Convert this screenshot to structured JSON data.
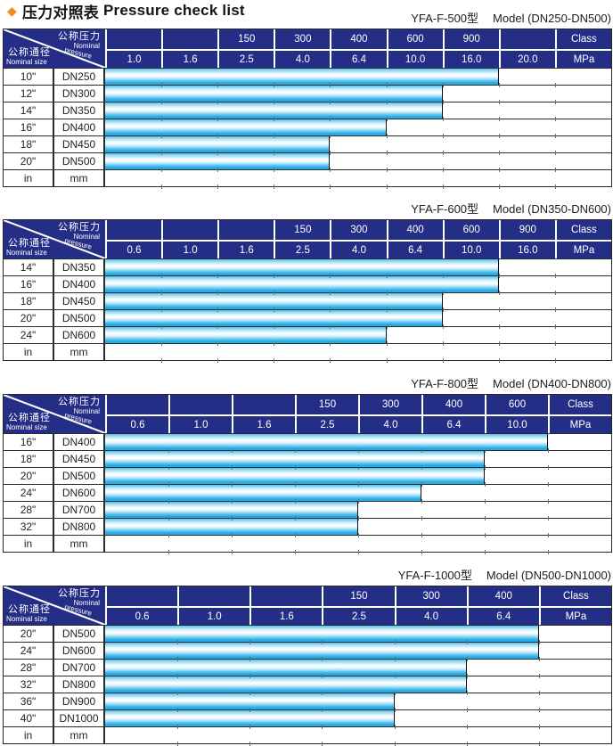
{
  "title": {
    "diamond": "◆",
    "zh": "压力对照表",
    "en": "Pressure check list"
  },
  "corner": {
    "pressure_zh": "公称压力",
    "pressure_en_1": "Nominal",
    "pressure_en_2": "pressure",
    "size_zh": "公称通径",
    "size_en": "Nominal size"
  },
  "colors": {
    "header_blue": "#252e86",
    "bar_cyan": "#29b0e6",
    "title_diamond_orange": "#ee8f1e",
    "grid_line": "#2a2a2a"
  },
  "tables": [
    {
      "model": "YFA-F-500型",
      "range": "Model (DN250-DN500)",
      "class_row": [
        "",
        "",
        "150",
        "300",
        "400",
        "600",
        "900",
        "",
        "Class"
      ],
      "mpa_row": [
        "1.0",
        "1.6",
        "2.5",
        "4.0",
        "6.4",
        "10.0",
        "16.0",
        "20.0",
        "MPa"
      ],
      "rows": [
        {
          "inch": "10\"",
          "dn": "DN250",
          "covered_columns": 7
        },
        {
          "inch": "12\"",
          "dn": "DN300",
          "covered_columns": 6
        },
        {
          "inch": "14\"",
          "dn": "DN350",
          "covered_columns": 6
        },
        {
          "inch": "16\"",
          "dn": "DN400",
          "covered_columns": 5
        },
        {
          "inch": "18\"",
          "dn": "DN450",
          "covered_columns": 4
        },
        {
          "inch": "20\"",
          "dn": "DN500",
          "covered_columns": 4
        }
      ],
      "footer": {
        "in_label": "in",
        "mm_label": "mm"
      }
    },
    {
      "model": "YFA-F-600型",
      "range": "Model (DN350-DN600)",
      "class_row": [
        "",
        "",
        "",
        "150",
        "300",
        "400",
        "600",
        "900",
        "Class"
      ],
      "mpa_row": [
        "0.6",
        "1.0",
        "1.6",
        "2.5",
        "4.0",
        "6.4",
        "10.0",
        "16.0",
        "MPa"
      ],
      "rows": [
        {
          "inch": "14\"",
          "dn": "DN350",
          "covered_columns": 7
        },
        {
          "inch": "16\"",
          "dn": "DN400",
          "covered_columns": 7
        },
        {
          "inch": "18\"",
          "dn": "DN450",
          "covered_columns": 6
        },
        {
          "inch": "20\"",
          "dn": "DN500",
          "covered_columns": 6
        },
        {
          "inch": "24\"",
          "dn": "DN600",
          "covered_columns": 5
        }
      ],
      "footer": {
        "in_label": "in",
        "mm_label": "mm"
      }
    },
    {
      "model": "YFA-F-800型",
      "range": "Model (DN400-DN800)",
      "class_row": [
        "",
        "",
        "",
        "150",
        "300",
        "400",
        "600",
        "Class"
      ],
      "mpa_row": [
        "0.6",
        "1.0",
        "1.6",
        "2.5",
        "4.0",
        "6.4",
        "10.0",
        "MPa"
      ],
      "rows": [
        {
          "inch": "16\"",
          "dn": "DN400",
          "covered_columns": 7
        },
        {
          "inch": "18\"",
          "dn": "DN450",
          "covered_columns": 6
        },
        {
          "inch": "20\"",
          "dn": "DN500",
          "covered_columns": 6
        },
        {
          "inch": "24\"",
          "dn": "DN600",
          "covered_columns": 5
        },
        {
          "inch": "28\"",
          "dn": "DN700",
          "covered_columns": 4
        },
        {
          "inch": "32\"",
          "dn": "DN800",
          "covered_columns": 4
        }
      ],
      "footer": {
        "in_label": "in",
        "mm_label": "mm"
      }
    },
    {
      "model": "YFA-F-1000型",
      "range": "Model (DN500-DN1000)",
      "class_row": [
        "",
        "",
        "",
        "150",
        "300",
        "400",
        "Class"
      ],
      "mpa_row": [
        "0.6",
        "1.0",
        "1.6",
        "2.5",
        "4.0",
        "6.4",
        "MPa"
      ],
      "rows": [
        {
          "inch": "20\"",
          "dn": "DN500",
          "covered_columns": 6
        },
        {
          "inch": "24\"",
          "dn": "DN600",
          "covered_columns": 6
        },
        {
          "inch": "28\"",
          "dn": "DN700",
          "covered_columns": 5
        },
        {
          "inch": "32\"",
          "dn": "DN800",
          "covered_columns": 5
        },
        {
          "inch": "36\"",
          "dn": "DN900",
          "covered_columns": 4
        },
        {
          "inch": "40\"",
          "dn": "DN1000",
          "covered_columns": 4
        }
      ],
      "footer": {
        "in_label": "in",
        "mm_label": "mm"
      }
    }
  ]
}
